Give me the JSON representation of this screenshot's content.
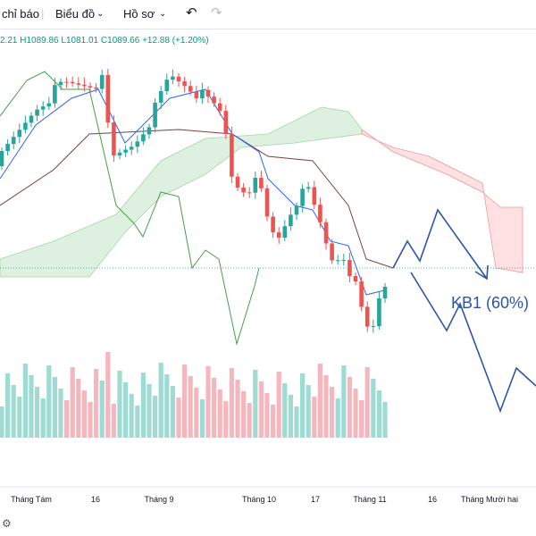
{
  "toolbar": {
    "indicators": "chỉ báo",
    "chart": "Biểu đồ",
    "profile": "Hồ sơ"
  },
  "ohlc": {
    "open": "2.21",
    "high": "H1089.86",
    "low": "L1081.01",
    "close": "C1089.66",
    "change": "+12.88 (+1.20%)"
  },
  "annotation": "KB1 (60%)",
  "x_axis": [
    "Tháng Tám",
    "16",
    "Tháng 9",
    "Tháng 10",
    "17",
    "Tháng 11",
    "16",
    "Tháng Mười hai"
  ]
}
